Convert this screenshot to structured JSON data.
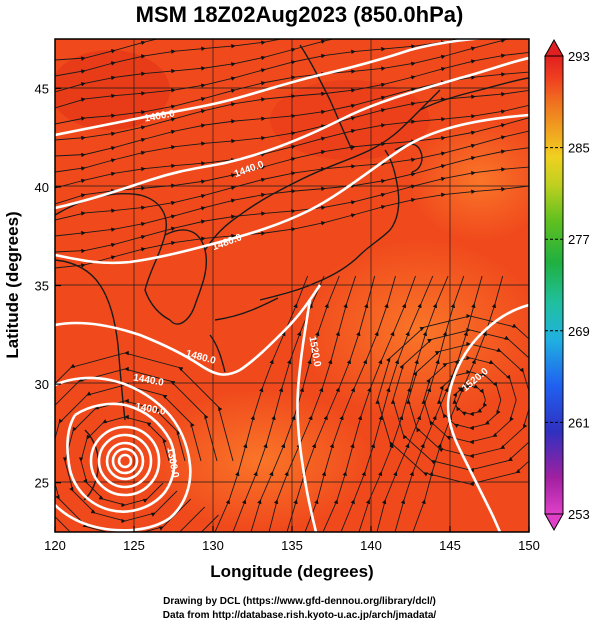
{
  "title": "MSM 18Z02Aug2023 (850.0hPa)",
  "credit_line1": "Drawing by DCL (https://www.gfd-dennou.org/library/dcl/)",
  "credit_line2": "Data from http://database.rish.kyoto-u.ac.jp/arch/jmadata/",
  "axes": {
    "xlabel": "Longitude (degrees)",
    "ylabel": "Latitude  (degrees)",
    "xticks": [
      "120",
      "125",
      "130",
      "135",
      "140",
      "145",
      "150"
    ],
    "yticks": [
      "25",
      "30",
      "35",
      "40",
      "45"
    ],
    "xlim": [
      120,
      150
    ],
    "ylim": [
      22.5,
      47.5
    ]
  },
  "colorbar": {
    "ticks": [
      "293",
      "285",
      "277",
      "269",
      "261",
      "253"
    ],
    "range": [
      253,
      293
    ],
    "colors": [
      "#e040c8",
      "#a020a0",
      "#3030c0",
      "#2060f0",
      "#20b0e0",
      "#20c0a0",
      "#20b040",
      "#60c020",
      "#c0d020",
      "#f0d020",
      "#f0a020",
      "#f07020",
      "#f04020",
      "#e02020"
    ]
  },
  "contour_labels": [
    {
      "text": "1400.0"
    },
    {
      "text": "1440.0"
    },
    {
      "text": "1480.0"
    },
    {
      "text": "1480.0"
    },
    {
      "text": "1520.0"
    },
    {
      "text": "1520.0"
    },
    {
      "text": "1440.0"
    },
    {
      "text": "1400.0"
    },
    {
      "text": "1360.0"
    }
  ],
  "colors": {
    "field_base": "#f04a1c",
    "field_warm": "#f86a20",
    "contour": "#ffffff",
    "coast": "#1a1a1a"
  }
}
